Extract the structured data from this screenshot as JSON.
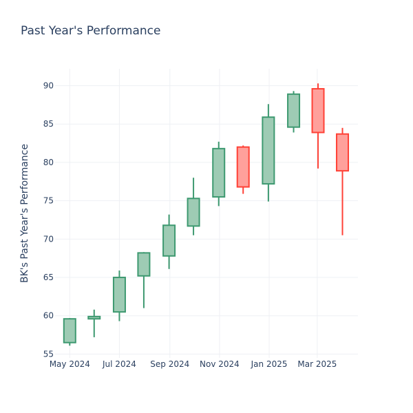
{
  "chart_data": {
    "type": "candlestick",
    "title": "Past Year's Performance",
    "xlabel": "",
    "ylabel": "BK's Past Year's Performance",
    "ylim": [
      54.5,
      92.2
    ],
    "y_ticks": [
      55,
      60,
      65,
      70,
      75,
      80,
      85,
      90
    ],
    "x_ticks": [
      {
        "label": "May 2024",
        "date": "2024-05-01"
      },
      {
        "label": "Jul 2024",
        "date": "2024-07-01"
      },
      {
        "label": "Sep 2024",
        "date": "2024-09-01"
      },
      {
        "label": "Nov 2024",
        "date": "2024-11-01"
      },
      {
        "label": "Jan 2025",
        "date": "2025-01-01"
      },
      {
        "label": "Mar 2025",
        "date": "2025-03-01"
      }
    ],
    "increasing_color": "#3d9970",
    "increasing_fill": "#9ecbb4",
    "decreasing_color": "#ff4136",
    "decreasing_fill": "#ffa09b",
    "candles": [
      {
        "date": "2024-05-01",
        "open": 56.5,
        "high": 59.7,
        "low": 56.1,
        "close": 59.6
      },
      {
        "date": "2024-05-31",
        "open": 59.6,
        "high": 60.8,
        "low": 57.2,
        "close": 59.9
      },
      {
        "date": "2024-07-01",
        "open": 60.5,
        "high": 65.9,
        "low": 59.3,
        "close": 65.0
      },
      {
        "date": "2024-07-31",
        "open": 65.2,
        "high": 68.3,
        "low": 61.0,
        "close": 68.2
      },
      {
        "date": "2024-08-31",
        "open": 67.8,
        "high": 73.2,
        "low": 66.1,
        "close": 71.8
      },
      {
        "date": "2024-09-30",
        "open": 71.7,
        "high": 78.0,
        "low": 70.5,
        "close": 75.3
      },
      {
        "date": "2024-10-31",
        "open": 75.5,
        "high": 82.7,
        "low": 74.3,
        "close": 81.8
      },
      {
        "date": "2024-11-30",
        "open": 82.0,
        "high": 82.2,
        "low": 75.9,
        "close": 76.8
      },
      {
        "date": "2024-12-31",
        "open": 77.2,
        "high": 87.6,
        "low": 74.9,
        "close": 85.9
      },
      {
        "date": "2025-01-31",
        "open": 84.6,
        "high": 89.3,
        "low": 83.9,
        "close": 88.9
      },
      {
        "date": "2025-03-02",
        "open": 89.6,
        "high": 90.3,
        "low": 79.2,
        "close": 83.9
      },
      {
        "date": "2025-04-01",
        "open": 83.7,
        "high": 84.5,
        "low": 70.5,
        "close": 78.9
      }
    ]
  }
}
